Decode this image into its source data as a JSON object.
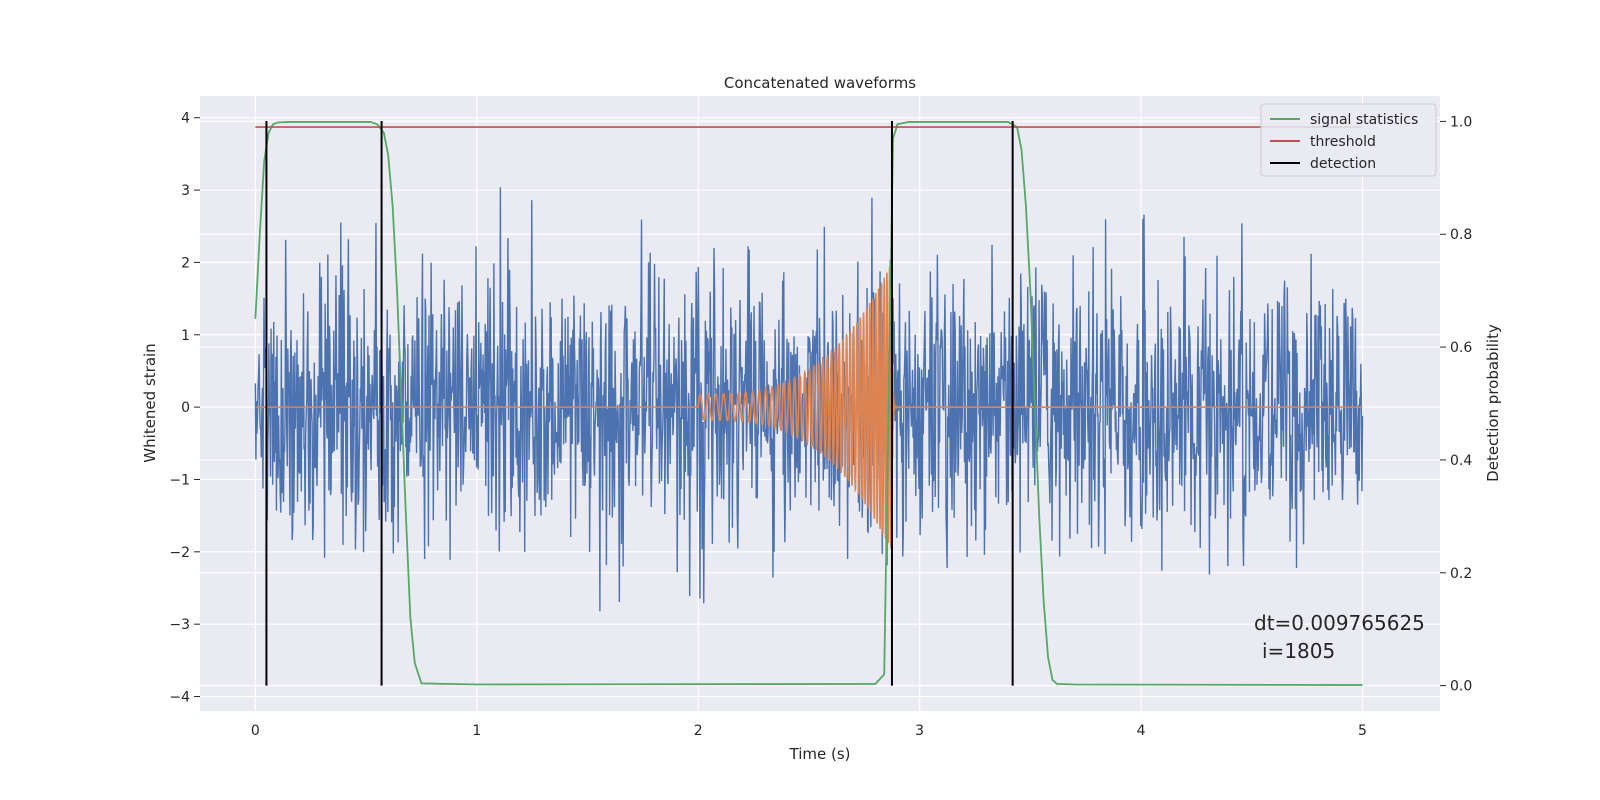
{
  "chart_data": {
    "type": "line",
    "title": "Concatenated waveforms",
    "xlabel": "Time (s)",
    "ylabel": "Whitened strain",
    "ylabel_right": "Detection probability",
    "xlim": [
      -0.25,
      5.35
    ],
    "ylim": [
      -4.2,
      4.3
    ],
    "ylim_right": [
      -0.045,
      1.045
    ],
    "xticks": [
      0,
      1,
      2,
      3,
      4,
      5
    ],
    "yticks": [
      -4,
      -3,
      -2,
      -1,
      0,
      1,
      2,
      3,
      4
    ],
    "yticks_right": [
      0.0,
      0.2,
      0.4,
      0.6,
      0.8,
      1.0
    ],
    "ytick_labels_right": [
      "0.0",
      "0.2",
      "0.4",
      "0.6",
      "0.8",
      "1.0"
    ],
    "ytick_labels_left": [
      "−4",
      "−3",
      "−2",
      "−1",
      "0",
      "1",
      "2",
      "3",
      "4"
    ],
    "grid": true,
    "legend_position": "top-right",
    "colors": {
      "background": "#eaeaf2",
      "grid": "#ffffff",
      "noise": "#4c72b0",
      "injection": "#dd8452",
      "signal_statistics": "#55a868",
      "threshold": "#c44e52",
      "detection": "#000000"
    },
    "legend": [
      {
        "label": "signal statistics",
        "color": "#55a868"
      },
      {
        "label": "threshold",
        "color": "#c44e52"
      },
      {
        "label": "detection",
        "color": "#000000"
      }
    ],
    "series": [
      {
        "name": "whitened strain",
        "axis": "left",
        "style": "noise",
        "x_range": [
          0,
          5
        ],
        "samples": 2048,
        "sigma": 0.9,
        "seed": 1805
      },
      {
        "name": "injected waveform",
        "axis": "left",
        "style": "chirp",
        "start": 2.0,
        "merger": 2.875,
        "start_amplitude": 0.18,
        "peak_amplitude": 2.0,
        "start_frequency": 28,
        "end_frequency": 85
      },
      {
        "name": "signal statistics",
        "axis": "right",
        "x": [
          0.0,
          0.02,
          0.04,
          0.06,
          0.08,
          0.1,
          0.15,
          0.52,
          0.55,
          0.58,
          0.6,
          0.62,
          0.64,
          0.66,
          0.68,
          0.7,
          0.72,
          0.75,
          1.0,
          2.8,
          2.84,
          2.86,
          2.88,
          2.9,
          2.95,
          3.4,
          3.44,
          3.46,
          3.48,
          3.5,
          3.52,
          3.54,
          3.56,
          3.58,
          3.6,
          3.62,
          3.7,
          5.0
        ],
        "y": [
          0.65,
          0.8,
          0.93,
          0.98,
          0.995,
          0.998,
          0.999,
          0.999,
          0.995,
          0.98,
          0.94,
          0.85,
          0.7,
          0.5,
          0.3,
          0.12,
          0.04,
          0.004,
          0.002,
          0.003,
          0.02,
          0.5,
          0.97,
          0.995,
          0.999,
          0.999,
          0.99,
          0.95,
          0.85,
          0.7,
          0.5,
          0.3,
          0.15,
          0.05,
          0.01,
          0.003,
          0.002,
          0.001
        ]
      },
      {
        "name": "threshold",
        "axis": "right",
        "x": [
          0.0,
          5.0
        ],
        "y": [
          0.99,
          0.99
        ]
      }
    ],
    "detections": [
      0.05,
      0.57,
      2.875,
      3.42
    ],
    "detection_range": [
      0.0,
      0.99
    ],
    "annotations": [
      "dt=0.009765625",
      "i=1805"
    ]
  }
}
